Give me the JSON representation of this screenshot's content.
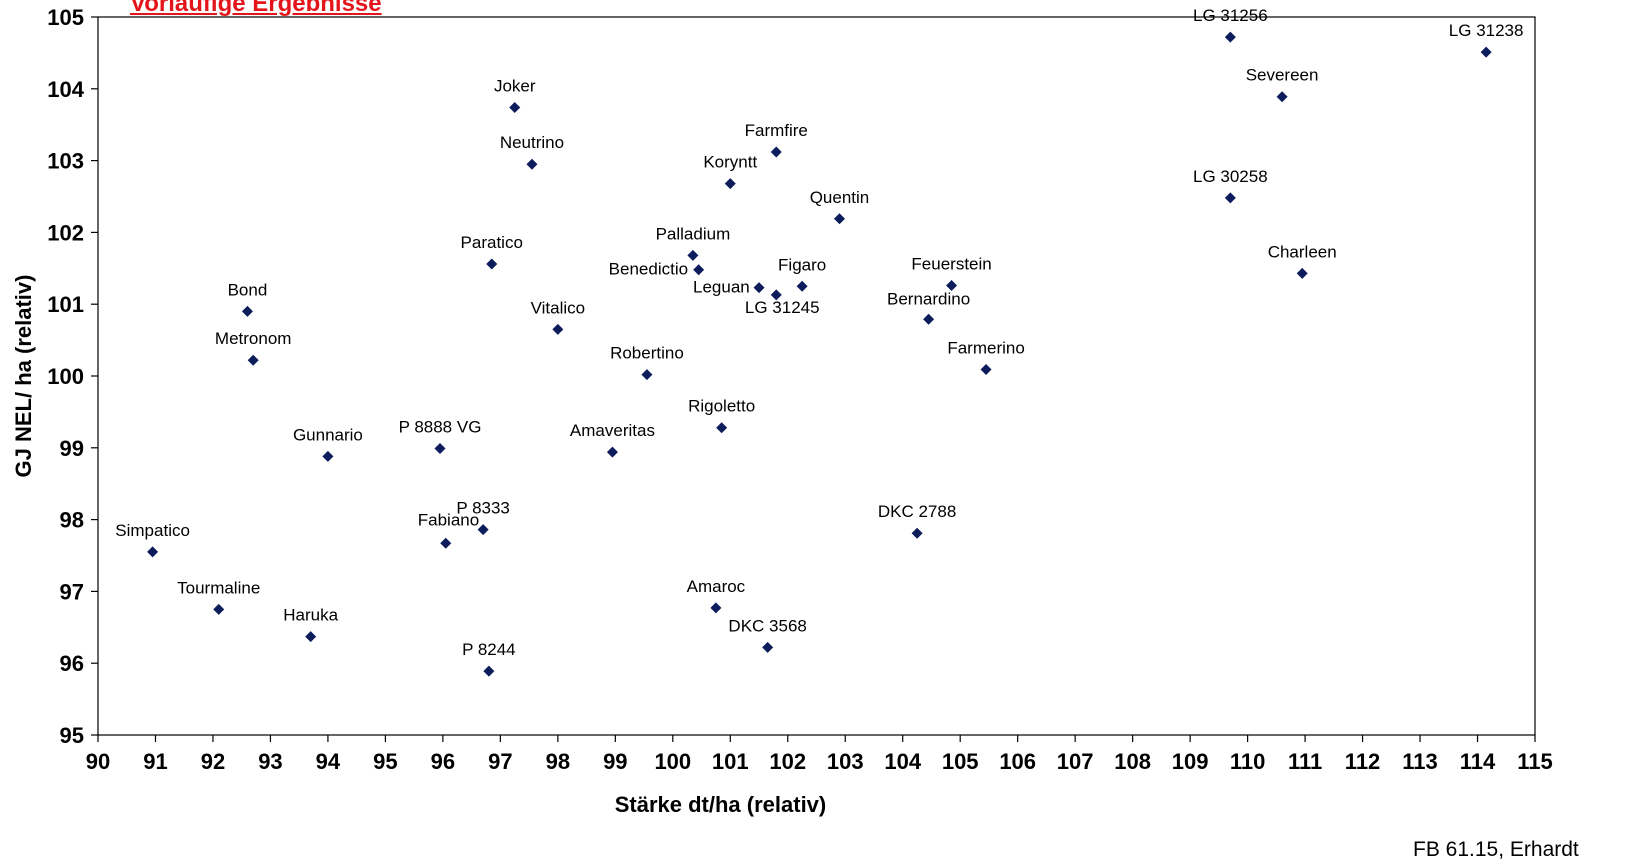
{
  "header_note": "Vorläufige Ergebnisse",
  "source_note": "FB 61.15, Erhardt",
  "colors": {
    "marker": "#0d1d5c",
    "axis": "#000000",
    "header_note": "#e3151a"
  },
  "chart_data": {
    "type": "scatter",
    "xlabel": "Stärke  dt/ha (relativ)",
    "ylabel": "GJ NEL/ ha (relativ)",
    "xlim": [
      90,
      115
    ],
    "ylim": [
      95,
      105
    ],
    "x_ticks": [
      90,
      91,
      92,
      93,
      94,
      95,
      96,
      97,
      98,
      99,
      100,
      101,
      102,
      103,
      104,
      105,
      106,
      107,
      108,
      109,
      110,
      111,
      112,
      113,
      114,
      115
    ],
    "y_ticks": [
      95,
      96,
      97,
      98,
      99,
      100,
      101,
      102,
      103,
      104,
      105
    ],
    "grid": false,
    "legend": "none",
    "points": [
      {
        "label": "Simpatico",
        "x": 90.95,
        "y": 97.55
      },
      {
        "label": "Tourmaline",
        "x": 92.1,
        "y": 96.75
      },
      {
        "label": "Haruka",
        "x": 93.7,
        "y": 96.37
      },
      {
        "label": "Bond",
        "x": 92.6,
        "y": 100.9
      },
      {
        "label": "Metronom",
        "x": 92.7,
        "y": 100.22
      },
      {
        "label": "Gunnario",
        "x": 94.0,
        "y": 98.88
      },
      {
        "label": "P 8888 VG",
        "x": 95.95,
        "y": 98.99
      },
      {
        "label": "Fabiano",
        "x": 96.05,
        "y": 97.67
      },
      {
        "label": "P 8333",
        "x": 96.7,
        "y": 97.86
      },
      {
        "label": "P 8244",
        "x": 96.8,
        "y": 95.89
      },
      {
        "label": "Joker",
        "x": 97.25,
        "y": 103.74
      },
      {
        "label": "Neutrino",
        "x": 97.55,
        "y": 102.95
      },
      {
        "label": "Paratico",
        "x": 96.85,
        "y": 101.56
      },
      {
        "label": "Vitalico",
        "x": 98.0,
        "y": 100.65
      },
      {
        "label": "Amaveritas",
        "x": 98.95,
        "y": 98.94
      },
      {
        "label": "Robertino",
        "x": 99.55,
        "y": 100.02
      },
      {
        "label": "Palladium",
        "x": 100.35,
        "y": 101.68
      },
      {
        "label": "Benedictio",
        "x": 100.45,
        "y": 101.48
      },
      {
        "label": "Koryntt",
        "x": 101.0,
        "y": 102.68
      },
      {
        "label": "Farmfire",
        "x": 101.8,
        "y": 103.12
      },
      {
        "label": "Quentin",
        "x": 102.9,
        "y": 102.19
      },
      {
        "label": "Leguan",
        "x": 101.5,
        "y": 101.23
      },
      {
        "label": "Figaro",
        "x": 102.25,
        "y": 101.25
      },
      {
        "label": "LG 31245",
        "x": 101.8,
        "y": 101.13
      },
      {
        "label": "Rigoletto",
        "x": 100.85,
        "y": 99.28
      },
      {
        "label": "Amaroc",
        "x": 100.75,
        "y": 96.77
      },
      {
        "label": "DKC 3568",
        "x": 101.65,
        "y": 96.22
      },
      {
        "label": "Feuerstein",
        "x": 104.85,
        "y": 101.26
      },
      {
        "label": "Bernardino",
        "x": 104.45,
        "y": 100.79
      },
      {
        "label": "Farmerino",
        "x": 105.45,
        "y": 100.09
      },
      {
        "label": "DKC 2788",
        "x": 104.25,
        "y": 97.81
      },
      {
        "label": "LG 31256",
        "x": 109.7,
        "y": 104.72
      },
      {
        "label": "LG 31238",
        "x": 114.15,
        "y": 104.51
      },
      {
        "label": "Severeen",
        "x": 110.6,
        "y": 103.89
      },
      {
        "label": "LG 30258",
        "x": 109.7,
        "y": 102.48
      },
      {
        "label": "Charleen",
        "x": 110.95,
        "y": 101.43
      }
    ]
  }
}
